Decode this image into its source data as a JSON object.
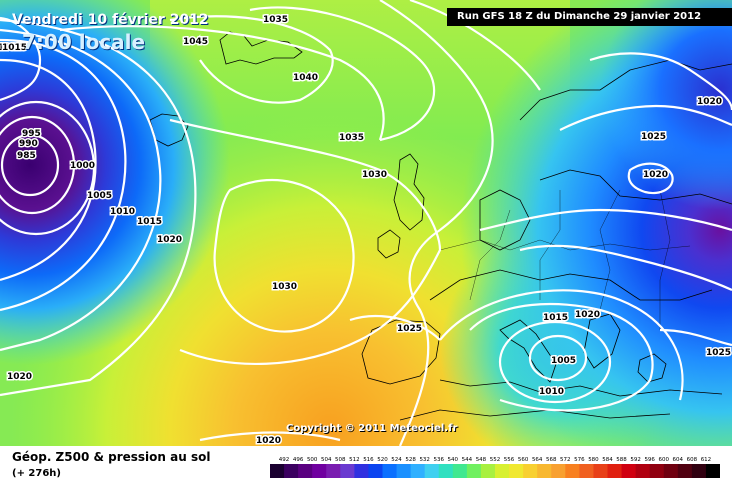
{
  "map": {
    "date_line": "Vendredi 10 février 2012",
    "time_line": "7:00 locale",
    "run_line": "Run GFS 18 Z du Dimanche 29 janvier 2012",
    "copyright": "Copyright © 2011 Meteociel.fr"
  },
  "isobars": [
    {
      "label": "1035",
      "kind": "upper-left-arc"
    },
    {
      "label": "1045",
      "kind": "north-high"
    },
    {
      "label": "1040",
      "kind": "north-high"
    },
    {
      "label": "1035",
      "kind": "north-arc"
    },
    {
      "label": "1035",
      "kind": "top-edge"
    },
    {
      "label": "1030",
      "kind": "atlantic"
    },
    {
      "label": "1030",
      "kind": "atlantic-center"
    },
    {
      "label": "1025",
      "kind": "iberia"
    },
    {
      "label": "1020",
      "kind": "west"
    },
    {
      "label": "1020",
      "kind": "southwest"
    },
    {
      "label": "1020",
      "kind": "bottom"
    },
    {
      "label": "1015",
      "kind": "west"
    },
    {
      "label": "1015",
      "kind": "top-left"
    },
    {
      "label": "1010",
      "kind": "west"
    },
    {
      "label": "1005",
      "kind": "west"
    },
    {
      "label": "1000",
      "kind": "west"
    },
    {
      "label": "995",
      "kind": "low-core"
    },
    {
      "label": "990",
      "kind": "low-core"
    },
    {
      "label": "985",
      "kind": "low-core"
    },
    {
      "label": "1020",
      "kind": "east-top"
    },
    {
      "label": "1025",
      "kind": "east"
    },
    {
      "label": "1020",
      "kind": "east-center"
    },
    {
      "label": "1025",
      "kind": "east-edge"
    },
    {
      "label": "1015",
      "kind": "med-low"
    },
    {
      "label": "1020",
      "kind": "med-low"
    },
    {
      "label": "1010",
      "kind": "med-low"
    },
    {
      "label": "1005",
      "kind": "med-low"
    }
  ],
  "legend": {
    "title": "Géop. Z500 & pression au sol",
    "subtitle": "(+ 276h)",
    "ticks": [
      "492",
      "496",
      "500",
      "504",
      "508",
      "512",
      "516",
      "520",
      "524",
      "528",
      "532",
      "536",
      "540",
      "544",
      "548",
      "552",
      "556",
      "560",
      "564",
      "568",
      "572",
      "576",
      "580",
      "584",
      "588",
      "592",
      "596",
      "600",
      "604",
      "608",
      "612"
    ],
    "colors": [
      "#1a0030",
      "#3b0060",
      "#5a0080",
      "#7000a0",
      "#7a1db0",
      "#6a3ad0",
      "#3030e0",
      "#0a44f0",
      "#0a70ff",
      "#1a90ff",
      "#30b0ff",
      "#40d0f0",
      "#30e0c0",
      "#40e890",
      "#70f060",
      "#a8f040",
      "#d8f030",
      "#f0e830",
      "#f8d030",
      "#f8b830",
      "#f8a030",
      "#f88020",
      "#f06020",
      "#e84018",
      "#e02010",
      "#d00010",
      "#b00010",
      "#900010",
      "#700010",
      "#500010",
      "#300010",
      "#000000"
    ]
  }
}
